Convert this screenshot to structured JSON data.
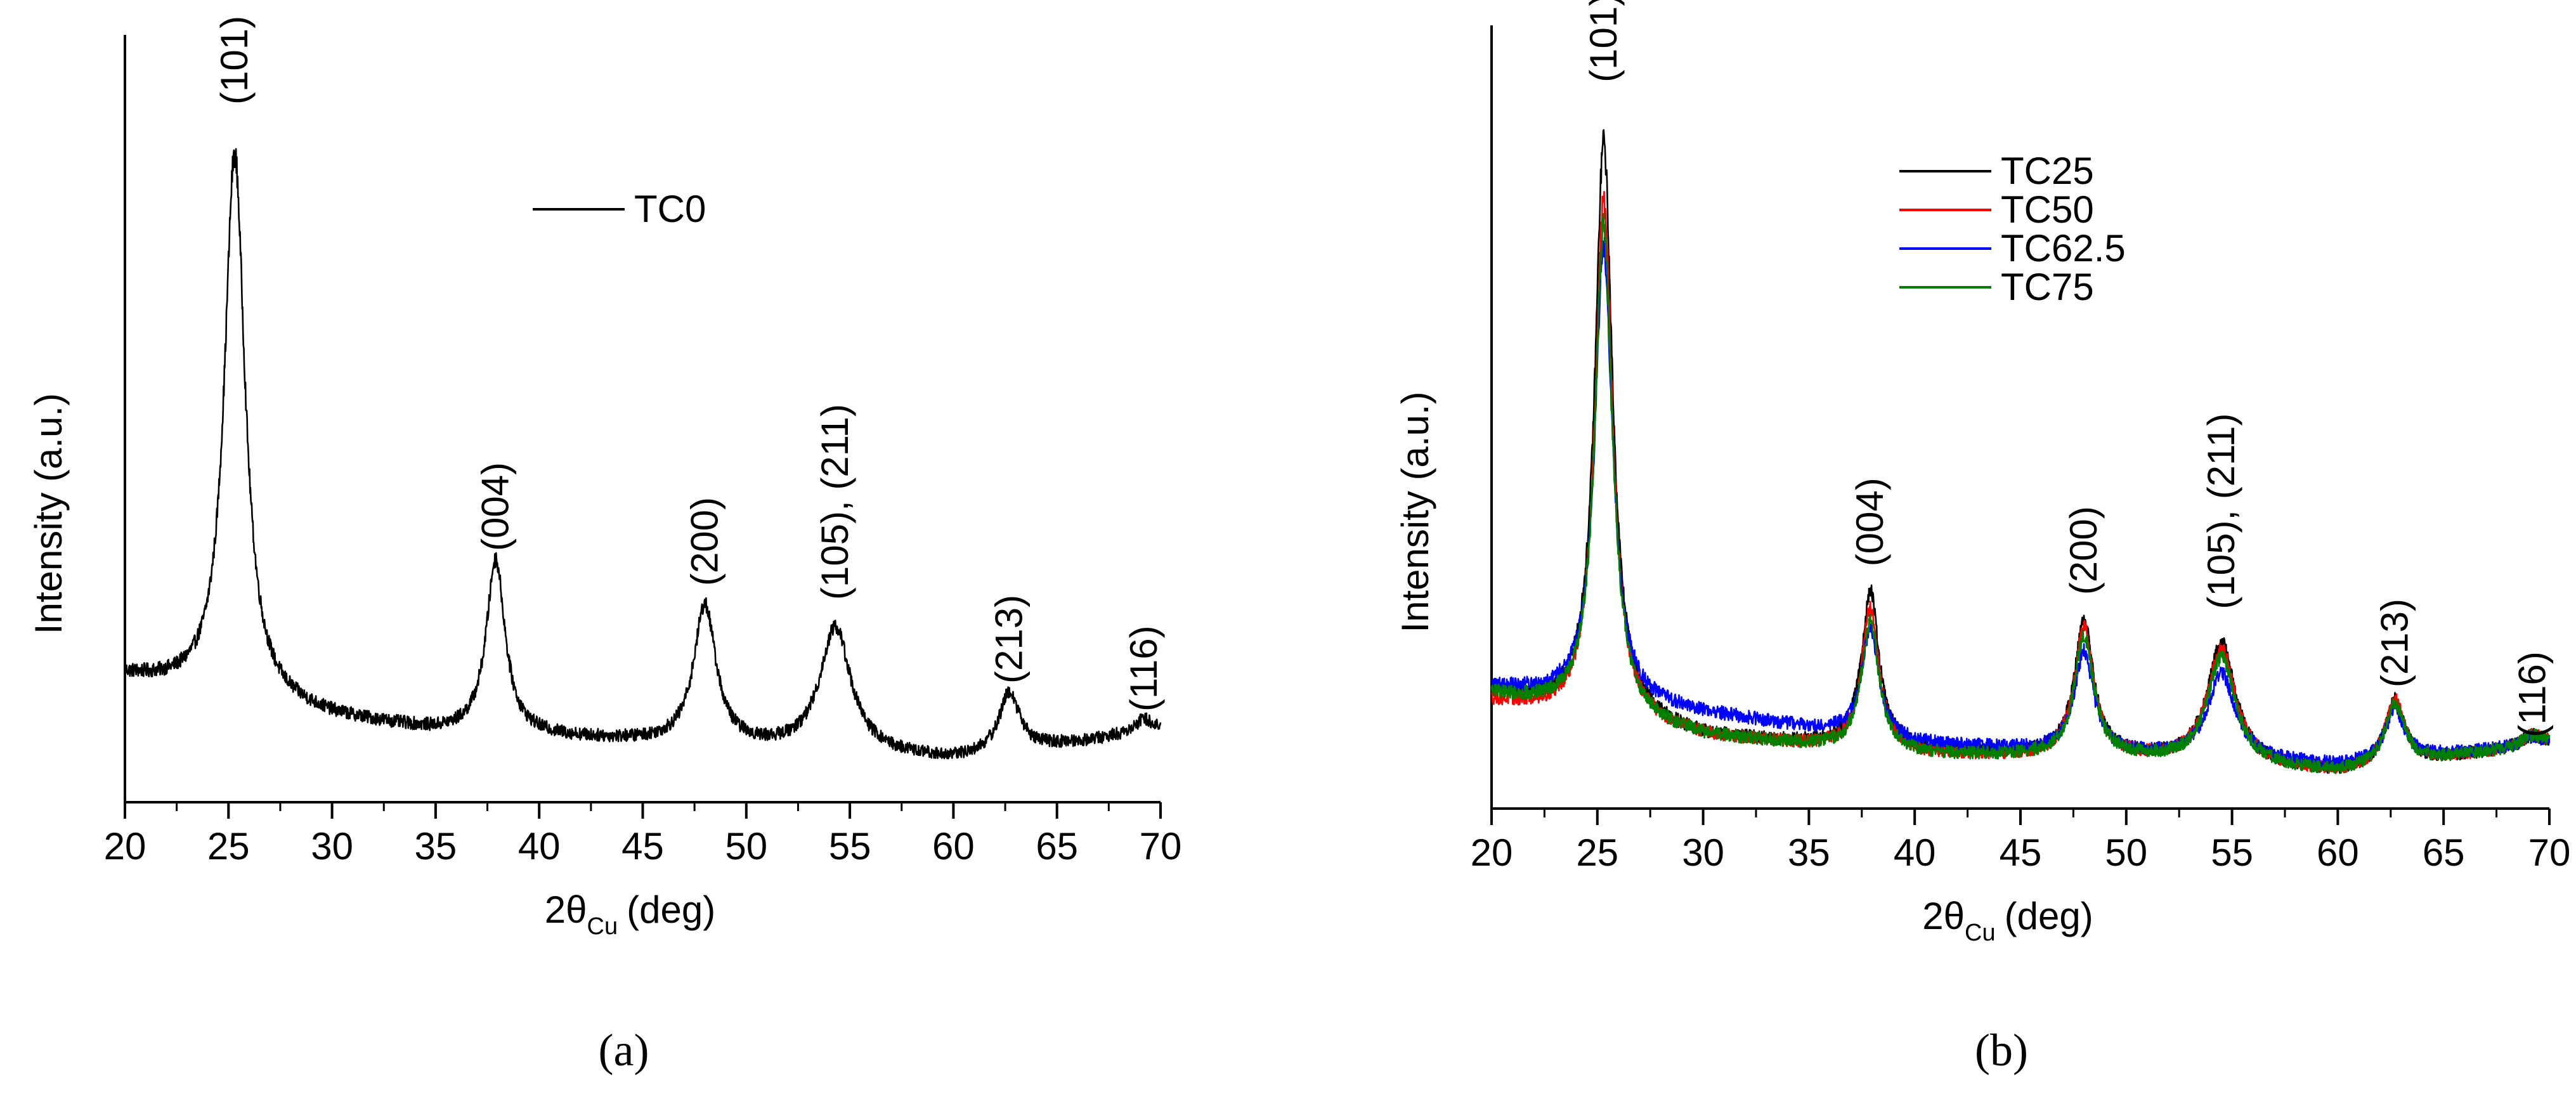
{
  "chart_data": [
    {
      "panel_label": "(a)",
      "type": "line",
      "xlabel_main": "2θ",
      "xlabel_sub": "Cu",
      "xlabel_unit": "(deg)",
      "ylabel": "Intensity (a.u.)",
      "xlim": [
        20,
        70
      ],
      "ylim": [
        0,
        1.1
      ],
      "xticks": [
        "20",
        "25",
        "30",
        "35",
        "40",
        "45",
        "50",
        "55",
        "60",
        "65",
        "70"
      ],
      "y_ticks_shown": false,
      "legend": {
        "position": "top-center",
        "entries": [
          "TC0"
        ]
      },
      "series": [
        {
          "name": "TC0",
          "color": "#000000",
          "baseline": [
            [
              20,
              0.18
            ],
            [
              30,
              0.12
            ],
            [
              35,
              0.1
            ],
            [
              45,
              0.085
            ],
            [
              60,
              0.06
            ],
            [
              70,
              0.1
            ]
          ],
          "peaks": [
            {
              "center": 25.3,
              "height": 0.78,
              "width": 0.6
            },
            {
              "center": 37.9,
              "height": 0.25,
              "width": 0.55
            },
            {
              "center": 48.0,
              "height": 0.2,
              "width": 0.65
            },
            {
              "center": 54.3,
              "height": 0.18,
              "width": 0.9
            },
            {
              "center": 62.7,
              "height": 0.085,
              "width": 0.6
            },
            {
              "center": 69.2,
              "height": 0.02,
              "width": 0.7
            }
          ],
          "noise": 0.008
        }
      ],
      "annotations": [
        {
          "label": "(101)",
          "x": 25.3,
          "y": 1.0
        },
        {
          "label": "(004)",
          "x": 37.9,
          "y": 0.36
        },
        {
          "label": "(200)",
          "x": 48.0,
          "y": 0.31
        },
        {
          "label": "(105), (211)",
          "x": 54.3,
          "y": 0.29
        },
        {
          "label": "(213)",
          "x": 62.7,
          "y": 0.17
        },
        {
          "label": "(116)",
          "x": 69.2,
          "y": 0.13
        }
      ]
    },
    {
      "panel_label": "(b)",
      "type": "line",
      "xlabel_main": "2θ",
      "xlabel_sub": "Cu",
      "xlabel_unit": "(deg)",
      "ylabel": "Intensity (a.u.)",
      "xlim": [
        20,
        70
      ],
      "ylim": [
        0,
        1.1
      ],
      "xticks": [
        "20",
        "25",
        "30",
        "35",
        "40",
        "45",
        "50",
        "55",
        "60",
        "65",
        "70"
      ],
      "y_ticks_shown": false,
      "legend": {
        "position": "top-right",
        "entries": [
          "TC25",
          "TC50",
          "TC62.5",
          "TC75"
        ]
      },
      "series": [
        {
          "name": "TC25",
          "color": "#000000",
          "baseline": [
            [
              20,
              0.16
            ],
            [
              30,
              0.1
            ],
            [
              40,
              0.08
            ],
            [
              50,
              0.07
            ],
            [
              60,
              0.05
            ],
            [
              70,
              0.09
            ]
          ],
          "peaks": [
            {
              "center": 25.3,
              "height": 0.81,
              "width": 0.5
            },
            {
              "center": 37.9,
              "height": 0.22,
              "width": 0.5
            },
            {
              "center": 48.0,
              "height": 0.19,
              "width": 0.55
            },
            {
              "center": 54.5,
              "height": 0.17,
              "width": 0.8
            },
            {
              "center": 62.7,
              "height": 0.09,
              "width": 0.55
            },
            {
              "center": 69.2,
              "height": 0.015,
              "width": 0.6
            }
          ],
          "noise": 0.008
        },
        {
          "name": "TC50",
          "color": "#ff0000",
          "baseline": [
            [
              20,
              0.15
            ],
            [
              30,
              0.1
            ],
            [
              40,
              0.075
            ],
            [
              50,
              0.07
            ],
            [
              60,
              0.05
            ],
            [
              70,
              0.09
            ]
          ],
          "peaks": [
            {
              "center": 25.3,
              "height": 0.73,
              "width": 0.5
            },
            {
              "center": 37.9,
              "height": 0.2,
              "width": 0.5
            },
            {
              "center": 48.0,
              "height": 0.18,
              "width": 0.55
            },
            {
              "center": 54.5,
              "height": 0.16,
              "width": 0.8
            },
            {
              "center": 62.7,
              "height": 0.09,
              "width": 0.55
            },
            {
              "center": 69.2,
              "height": 0.015,
              "width": 0.6
            }
          ],
          "noise": 0.008
        },
        {
          "name": "TC62.5",
          "color": "#0000ff",
          "baseline": [
            [
              20,
              0.17
            ],
            [
              28,
              0.14
            ],
            [
              33,
              0.12
            ],
            [
              40,
              0.09
            ],
            [
              50,
              0.075
            ],
            [
              60,
              0.06
            ],
            [
              70,
              0.09
            ]
          ],
          "peaks": [
            {
              "center": 25.3,
              "height": 0.64,
              "width": 0.5
            },
            {
              "center": 37.9,
              "height": 0.15,
              "width": 0.5
            },
            {
              "center": 48.0,
              "height": 0.14,
              "width": 0.55
            },
            {
              "center": 54.5,
              "height": 0.12,
              "width": 0.8
            },
            {
              "center": 62.7,
              "height": 0.07,
              "width": 0.55
            },
            {
              "center": 69.2,
              "height": 0.012,
              "width": 0.6
            }
          ],
          "noise": 0.008
        },
        {
          "name": "TC75",
          "color": "#008000",
          "baseline": [
            [
              20,
              0.16
            ],
            [
              30,
              0.1
            ],
            [
              40,
              0.075
            ],
            [
              50,
              0.07
            ],
            [
              60,
              0.05
            ],
            [
              70,
              0.09
            ]
          ],
          "peaks": [
            {
              "center": 25.3,
              "height": 0.69,
              "width": 0.5
            },
            {
              "center": 37.9,
              "height": 0.18,
              "width": 0.5
            },
            {
              "center": 48.0,
              "height": 0.17,
              "width": 0.55
            },
            {
              "center": 54.5,
              "height": 0.15,
              "width": 0.8
            },
            {
              "center": 62.7,
              "height": 0.085,
              "width": 0.55
            },
            {
              "center": 69.2,
              "height": 0.015,
              "width": 0.6
            }
          ],
          "noise": 0.008
        }
      ],
      "annotations": [
        {
          "label": "(101)",
          "x": 25.3,
          "y": 1.02
        },
        {
          "label": "(004)",
          "x": 37.9,
          "y": 0.34
        },
        {
          "label": "(200)",
          "x": 48.0,
          "y": 0.3
        },
        {
          "label": "(105), (211)",
          "x": 54.5,
          "y": 0.28
        },
        {
          "label": "(213)",
          "x": 62.7,
          "y": 0.17
        },
        {
          "label": "(116)",
          "x": 69.2,
          "y": 0.1
        }
      ]
    }
  ]
}
